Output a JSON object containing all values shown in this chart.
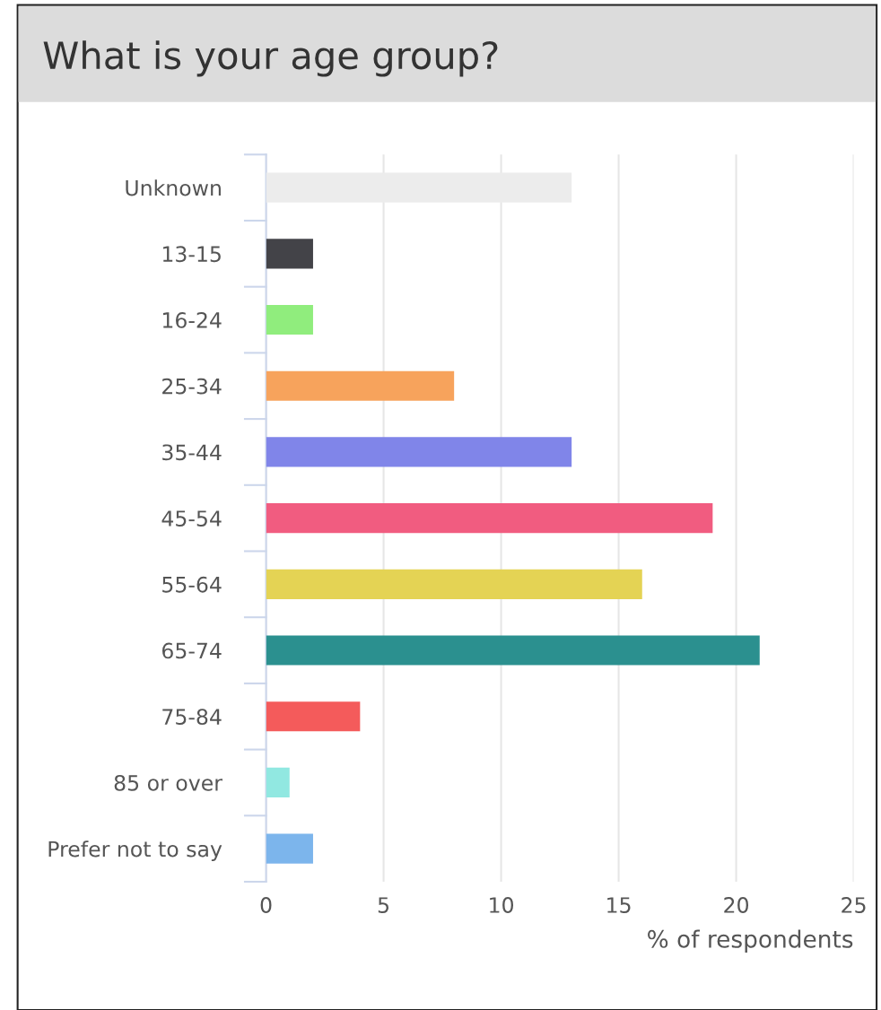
{
  "chart_data": {
    "type": "bar",
    "orientation": "horizontal",
    "title": "What is your age group?",
    "xlabel": "% of respondents",
    "categories": [
      "Unknown",
      "13-15",
      "16-24",
      "25-34",
      "35-44",
      "45-54",
      "55-64",
      "65-74",
      "75-84",
      "85 or over",
      "Prefer not to say"
    ],
    "values": [
      13,
      2,
      2,
      8,
      13,
      19,
      16,
      21,
      4,
      1,
      2
    ],
    "colors": [
      "#ececec",
      "#434348",
      "#90ed7d",
      "#f7a35c",
      "#8085e9",
      "#f15c80",
      "#e4d354",
      "#2b908f",
      "#f45b5b",
      "#91e8e1",
      "#7cb5ec"
    ],
    "xlim": [
      0,
      25
    ],
    "xticks": [
      0,
      5,
      10,
      15,
      20,
      25
    ],
    "grid": "x",
    "legend": false
  }
}
